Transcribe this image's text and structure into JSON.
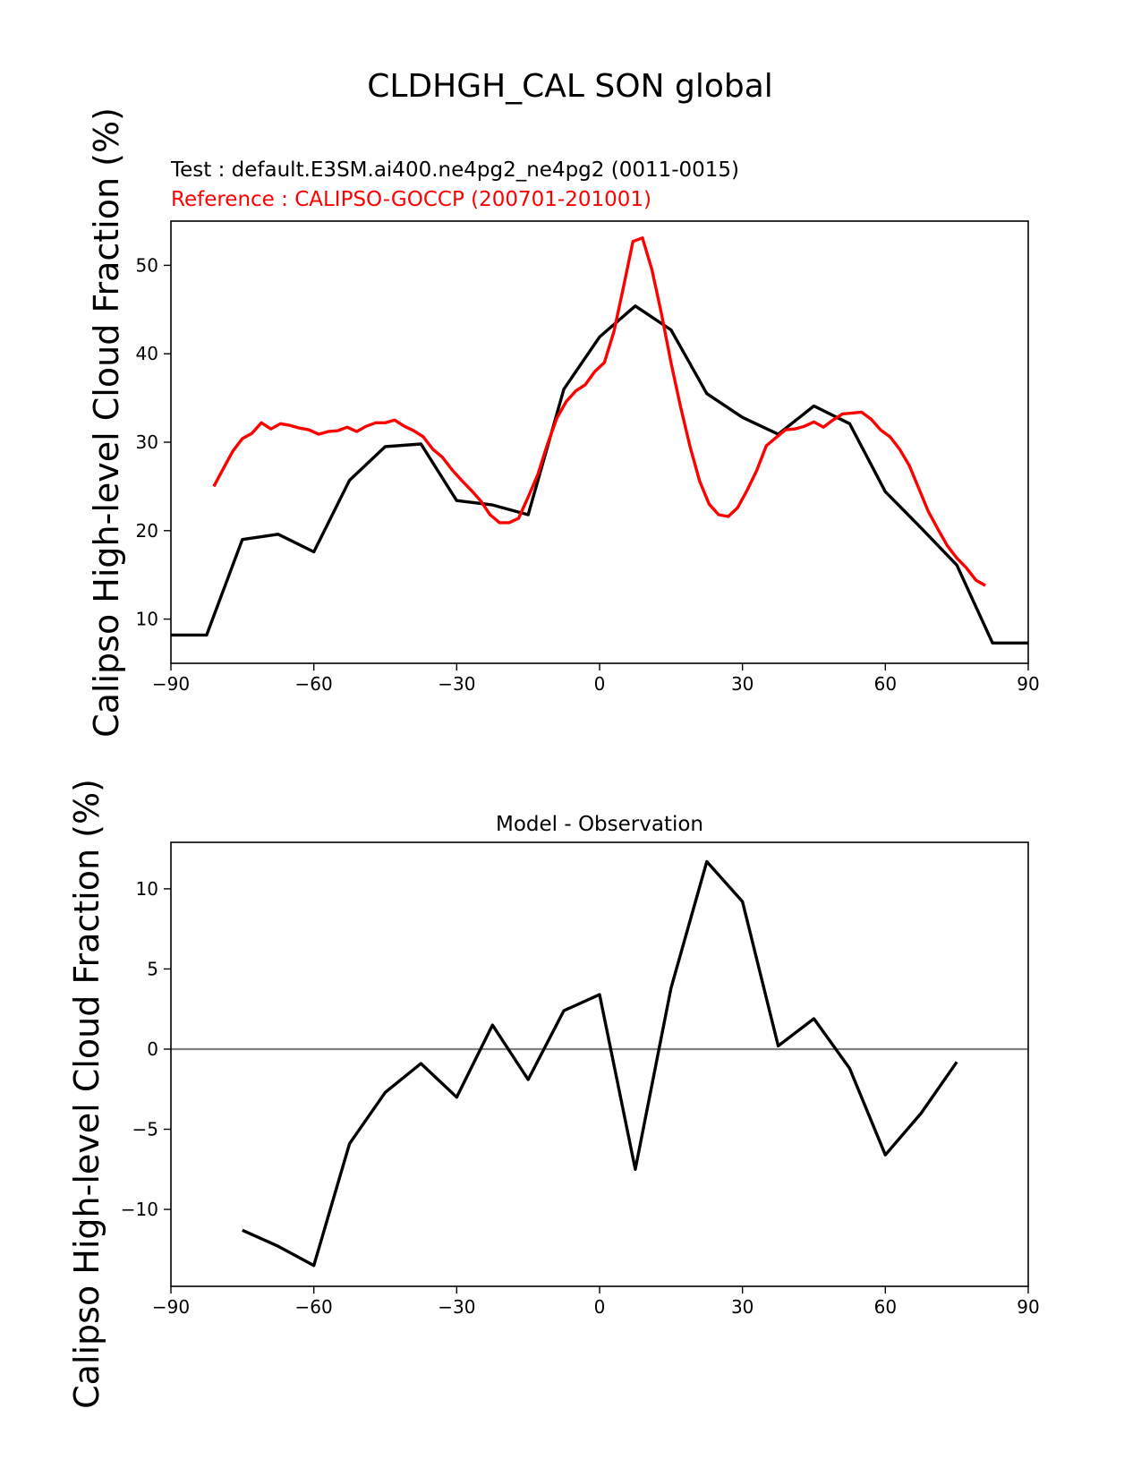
{
  "figure": {
    "suptitle": "CLDHGH_CAL SON global"
  },
  "chart_data": [
    {
      "type": "line",
      "test_label": "Test : default.E3SM.ai400.ne4pg2_ne4pg2 (0011-0015)",
      "reference_label": "Reference : CALIPSO-GOCCP (200701-201001)",
      "ylabel": "Calipso High-level Cloud Fraction (%)",
      "xlim": [
        -90,
        90
      ],
      "ylim": [
        5,
        55
      ],
      "xticks": [
        -90,
        -60,
        -30,
        0,
        30,
        60,
        90
      ],
      "yticks": [
        10,
        20,
        30,
        40,
        50
      ],
      "colors": {
        "test": "#000000",
        "reference": "#ff0000"
      },
      "series": [
        {
          "role": "test",
          "x": [
            -90,
            -82.5,
            -75,
            -67.5,
            -60,
            -52.5,
            -45,
            -37.5,
            -30,
            -22.5,
            -15,
            -7.5,
            0,
            7.5,
            15,
            22.5,
            30,
            37.5,
            45,
            52.5,
            60,
            67.5,
            75,
            82.5,
            90
          ],
          "y": [
            8.2,
            8.2,
            19.0,
            19.6,
            17.6,
            25.7,
            29.5,
            29.8,
            23.4,
            22.9,
            21.8,
            36.0,
            41.9,
            45.4,
            42.7,
            35.5,
            32.8,
            30.9,
            34.1,
            32.1,
            24.4,
            20.3,
            16.1,
            7.3,
            7.3
          ]
        },
        {
          "role": "reference",
          "x": [
            -81,
            -79,
            -77,
            -75,
            -73,
            -71,
            -69,
            -67,
            -65,
            -63,
            -61,
            -59,
            -57,
            -55,
            -53,
            -51,
            -49,
            -47,
            -45,
            -43,
            -41,
            -39,
            -37,
            -35,
            -33,
            -31,
            -29,
            -27,
            -25,
            -23,
            -21,
            -19,
            -17,
            -15,
            -13,
            -11,
            -9,
            -7,
            -5,
            -3,
            -1,
            1,
            3,
            5,
            7,
            9,
            11,
            13,
            15,
            17,
            19,
            21,
            23,
            25,
            27,
            29,
            31,
            33,
            35,
            37,
            39,
            41,
            43,
            45,
            47,
            49,
            51,
            53,
            55,
            57,
            59,
            61,
            63,
            65,
            67,
            69,
            71,
            73,
            75,
            77,
            79,
            81
          ],
          "y": [
            25.0,
            27.0,
            29.0,
            30.4,
            31.0,
            32.2,
            31.5,
            32.1,
            31.9,
            31.6,
            31.4,
            30.9,
            31.2,
            31.3,
            31.7,
            31.2,
            31.8,
            32.2,
            32.2,
            32.5,
            31.8,
            31.3,
            30.6,
            29.2,
            28.3,
            26.9,
            25.7,
            24.6,
            23.4,
            21.8,
            20.9,
            20.9,
            21.4,
            23.8,
            26.3,
            29.7,
            32.7,
            34.6,
            35.8,
            36.5,
            38.0,
            39.0,
            42.5,
            47.5,
            52.7,
            53.1,
            49.5,
            44.5,
            39.0,
            34.0,
            29.5,
            25.6,
            23.0,
            21.8,
            21.6,
            22.6,
            24.6,
            26.8,
            29.6,
            30.5,
            31.4,
            31.5,
            31.8,
            32.3,
            31.7,
            32.5,
            33.2,
            33.3,
            33.4,
            32.6,
            31.4,
            30.6,
            29.2,
            27.4,
            24.8,
            22.2,
            20.2,
            18.3,
            16.9,
            15.8,
            14.4,
            13.8
          ]
        }
      ]
    },
    {
      "type": "line",
      "title": "Model - Observation",
      "ylabel": "Calipso High-level Cloud Fraction (%)",
      "xlim": [
        -90,
        90
      ],
      "ylim": [
        -14.8,
        12.9
      ],
      "xticks": [
        -90,
        -60,
        -30,
        0,
        30,
        60,
        90
      ],
      "yticks": [
        -10,
        -5,
        0,
        5,
        10
      ],
      "zero_line": 0,
      "colors": {
        "diff": "#000000",
        "zero_line": "#808080"
      },
      "series": [
        {
          "role": "difference",
          "x": [
            -75,
            -67.5,
            -60,
            -52.5,
            -45,
            -37.5,
            -30,
            -22.5,
            -15,
            -7.5,
            0,
            7.5,
            15,
            22.5,
            30,
            37.5,
            45,
            52.5,
            60,
            67.5,
            75
          ],
          "y": [
            -11.3,
            -12.3,
            -13.5,
            -5.9,
            -2.7,
            -0.9,
            -3.0,
            1.5,
            -1.9,
            2.4,
            3.4,
            -7.5,
            3.8,
            11.7,
            9.2,
            0.2,
            1.9,
            -1.2,
            -6.6,
            -4.0,
            -0.8
          ]
        }
      ]
    }
  ]
}
